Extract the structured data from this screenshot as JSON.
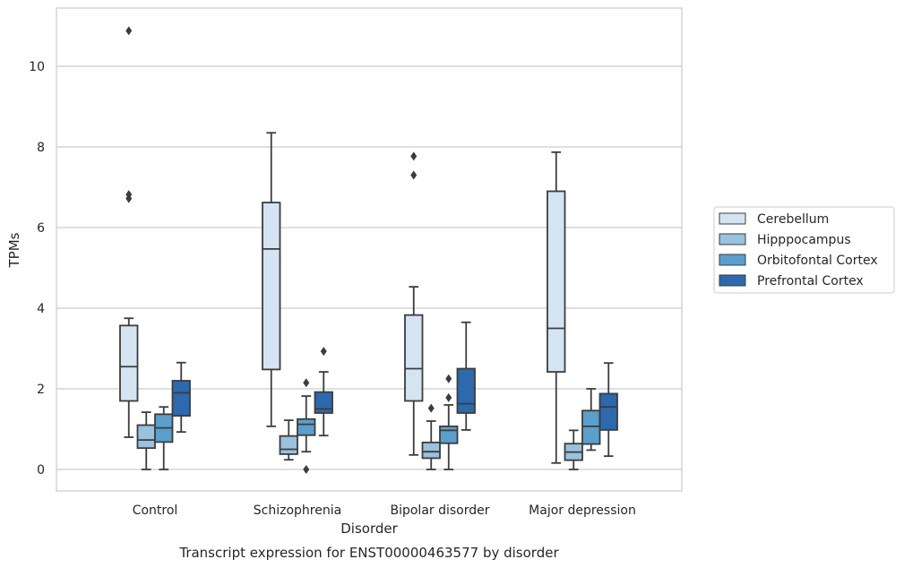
{
  "chart_data": {
    "type": "box",
    "caption": "Transcript expression for ENST00000463577 by disorder",
    "xlabel": "Disorder",
    "ylabel": "TPMs",
    "ylim": [
      -0.5,
      11.4
    ],
    "yticks": [
      0,
      2,
      4,
      6,
      8,
      10
    ],
    "grid": "horizontal",
    "legend_position": "right",
    "categories": [
      "Control",
      "Schizophrenia",
      "Bipolar disorder",
      "Major depression"
    ],
    "series": [
      {
        "name": "Cerebellum",
        "color": "#d4e4f2",
        "boxes": [
          {
            "whisker_low": 0.8,
            "q1": 1.7,
            "median": 2.55,
            "q3": 3.57,
            "whisker_high": 3.75,
            "outliers": [
              6.72,
              6.82,
              10.88
            ]
          },
          {
            "whisker_low": 1.07,
            "q1": 2.48,
            "median": 5.47,
            "q3": 6.62,
            "whisker_high": 8.35,
            "outliers": []
          },
          {
            "whisker_low": 0.36,
            "q1": 1.7,
            "median": 2.5,
            "q3": 3.83,
            "whisker_high": 4.53,
            "outliers": [
              7.3,
              7.77
            ]
          },
          {
            "whisker_low": 0.16,
            "q1": 2.42,
            "median": 3.5,
            "q3": 6.9,
            "whisker_high": 7.87,
            "outliers": []
          }
        ]
      },
      {
        "name": "Hipppocampus",
        "color": "#9ac1dd",
        "boxes": [
          {
            "whisker_low": 0.0,
            "q1": 0.53,
            "median": 0.73,
            "q3": 1.1,
            "whisker_high": 1.42,
            "outliers": []
          },
          {
            "whisker_low": 0.24,
            "q1": 0.38,
            "median": 0.5,
            "q3": 0.83,
            "whisker_high": 1.22,
            "outliers": []
          },
          {
            "whisker_low": 0.0,
            "q1": 0.28,
            "median": 0.44,
            "q3": 0.67,
            "whisker_high": 1.2,
            "outliers": [
              1.52
            ]
          },
          {
            "whisker_low": 0.0,
            "q1": 0.23,
            "median": 0.43,
            "q3": 0.64,
            "whisker_high": 0.97,
            "outliers": []
          }
        ]
      },
      {
        "name": "Orbitofontal Cortex",
        "color": "#5b9fcc",
        "boxes": [
          {
            "whisker_low": 0.0,
            "q1": 0.68,
            "median": 1.03,
            "q3": 1.37,
            "whisker_high": 1.55,
            "outliers": []
          },
          {
            "whisker_low": 0.44,
            "q1": 0.85,
            "median": 1.12,
            "q3": 1.25,
            "whisker_high": 1.82,
            "outliers": [
              0.0,
              2.15
            ]
          },
          {
            "whisker_low": 0.0,
            "q1": 0.65,
            "median": 0.97,
            "q3": 1.07,
            "whisker_high": 1.6,
            "outliers": [
              1.78,
              2.25
            ]
          },
          {
            "whisker_low": 0.48,
            "q1": 0.63,
            "median": 1.07,
            "q3": 1.46,
            "whisker_high": 2.0,
            "outliers": []
          }
        ]
      },
      {
        "name": "Prefrontal Cortex",
        "color": "#2c69ad",
        "boxes": [
          {
            "whisker_low": 0.93,
            "q1": 1.33,
            "median": 1.9,
            "q3": 2.2,
            "whisker_high": 2.65,
            "outliers": []
          },
          {
            "whisker_low": 0.84,
            "q1": 1.4,
            "median": 1.5,
            "q3": 1.92,
            "whisker_high": 2.42,
            "outliers": [
              2.93
            ]
          },
          {
            "whisker_low": 0.98,
            "q1": 1.4,
            "median": 1.63,
            "q3": 2.5,
            "whisker_high": 3.65,
            "outliers": []
          },
          {
            "whisker_low": 0.33,
            "q1": 0.98,
            "median": 1.55,
            "q3": 1.88,
            "whisker_high": 2.64,
            "outliers": []
          }
        ]
      }
    ]
  }
}
